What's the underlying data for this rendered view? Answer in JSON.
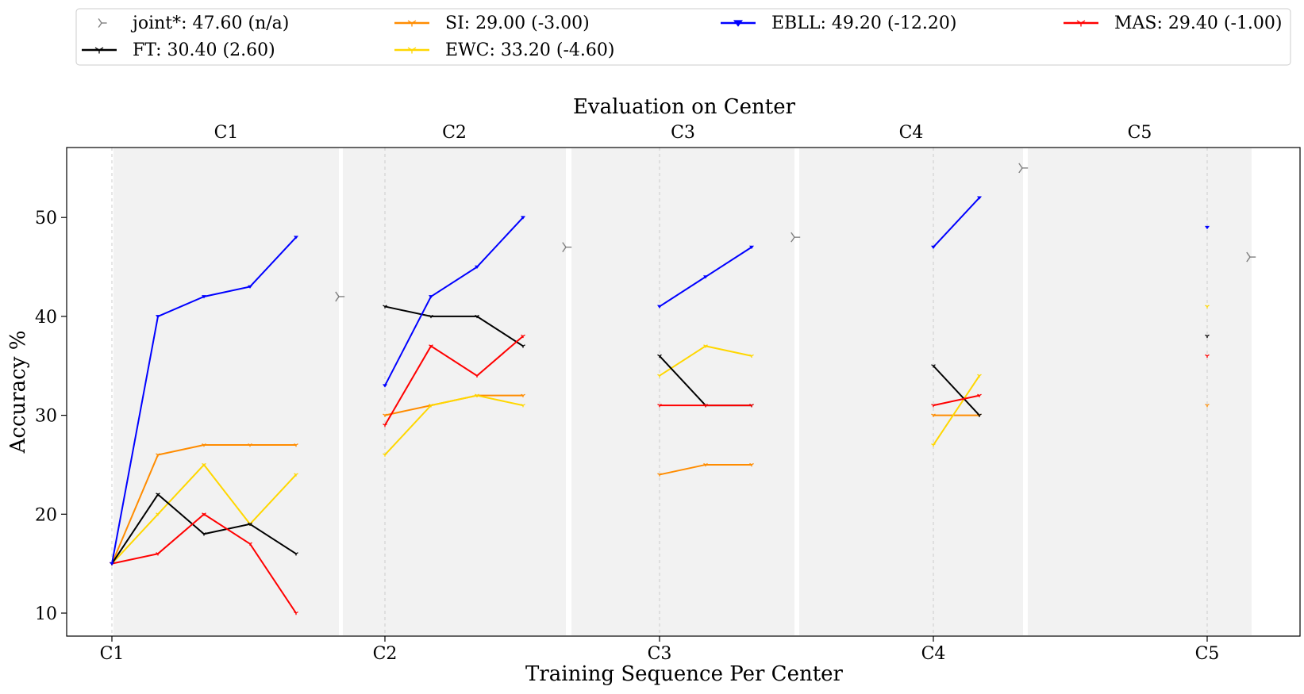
{
  "chart_data": {
    "type": "line",
    "title": "Evaluation on Center",
    "xlabel": "Training Sequence Per Center",
    "ylabel": "Accuracy %",
    "ylim": [
      8,
      57
    ],
    "yticks": [
      10,
      20,
      30,
      40,
      50
    ],
    "x_tick_labels": [
      "C1",
      "C2",
      "C3",
      "C4",
      "C5"
    ],
    "center_labels": [
      "C1",
      "C2",
      "C3",
      "C4",
      "C5"
    ],
    "grid": false,
    "legend_position": "top",
    "legend": [
      {
        "key": "joint",
        "label": "joint*: 47.60 (n/a)",
        "color": "#808080",
        "marker": "tri_right"
      },
      {
        "key": "ft",
        "label": "FT: 30.40 (2.60)",
        "color": "#000000",
        "marker": "tri_down"
      },
      {
        "key": "si",
        "label": "SI: 29.00 (-3.00)",
        "color": "#ff8c00",
        "marker": "tri_down"
      },
      {
        "key": "ewc",
        "label": "EWC: 33.20 (-4.60)",
        "color": "#ffd700",
        "marker": "tri_down"
      },
      {
        "key": "ebll",
        "label": "EBLL: 49.20 (-12.20)",
        "color": "#0000ff",
        "marker": "triangle_down"
      },
      {
        "key": "mas",
        "label": "MAS: 29.40 (-1.00)",
        "color": "#ff0000",
        "marker": "tri_down"
      }
    ],
    "panels": [
      {
        "center": "C1",
        "joint": 42,
        "series": {
          "ebll": [
            15,
            40,
            42,
            43,
            48
          ],
          "si": [
            15,
            26,
            27,
            27,
            27
          ],
          "ewc": [
            15,
            20,
            25,
            19,
            24
          ],
          "ft": [
            15,
            22,
            18,
            19,
            16
          ],
          "mas": [
            15,
            16,
            20,
            17,
            10
          ]
        }
      },
      {
        "center": "C2",
        "joint": 47,
        "series": {
          "ebll": [
            33,
            42,
            45,
            50
          ],
          "ft": [
            41,
            40,
            40,
            37
          ],
          "mas": [
            29,
            37,
            34,
            38
          ],
          "si": [
            30,
            31,
            32,
            32
          ],
          "ewc": [
            26,
            31,
            32,
            31
          ]
        }
      },
      {
        "center": "C3",
        "joint": 48,
        "series": {
          "ebll": [
            41,
            44,
            47
          ],
          "ft": [
            36,
            31,
            31
          ],
          "ewc": [
            34,
            37,
            36
          ],
          "mas": [
            31,
            31,
            31
          ],
          "si": [
            24,
            25,
            25
          ]
        }
      },
      {
        "center": "C4",
        "joint": 55,
        "series": {
          "ebll": [
            47,
            52
          ],
          "ft": [
            35,
            30
          ],
          "ewc": [
            27,
            34
          ],
          "mas": [
            31,
            32
          ],
          "si": [
            30,
            30
          ]
        }
      },
      {
        "center": "C5",
        "joint": 46,
        "series": {
          "ebll": [
            49
          ],
          "ewc": [
            41
          ],
          "ft": [
            38
          ],
          "mas": [
            36
          ],
          "si": [
            31
          ]
        }
      }
    ]
  }
}
